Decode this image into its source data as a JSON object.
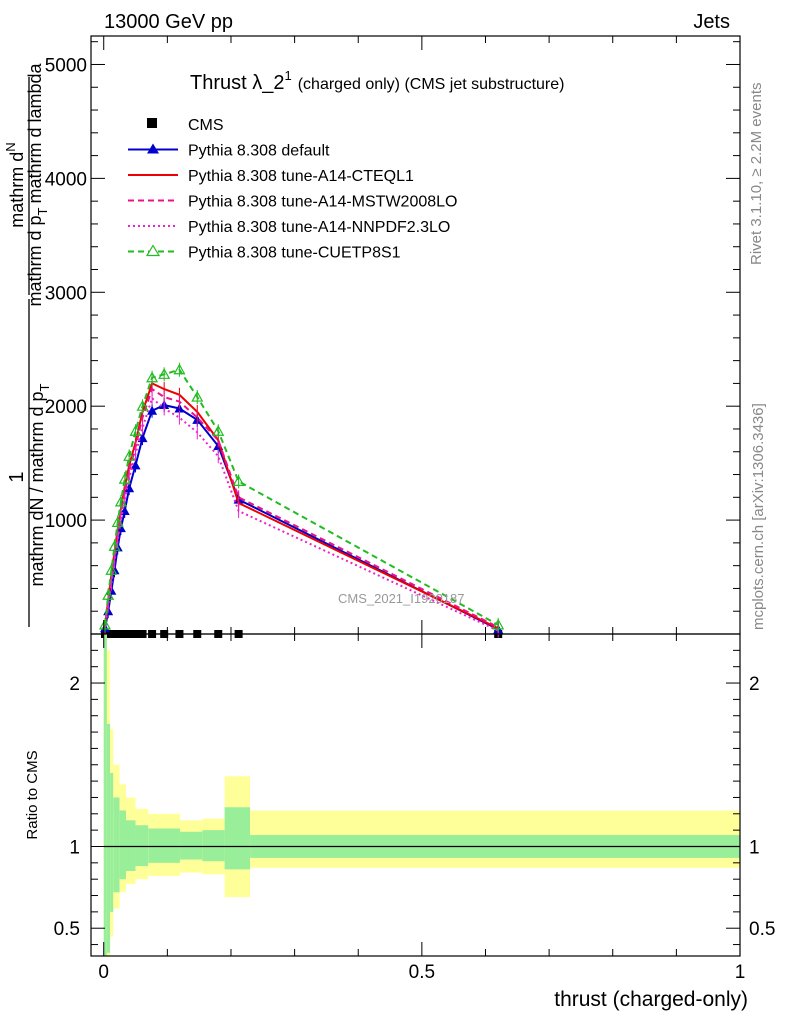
{
  "header": {
    "energy": "13000 GeV pp",
    "process": "Jets"
  },
  "side": {
    "rivet": "Rivet 3.1.10, ≥ 2.2M events",
    "mcplots": "mcplots.cern.ch [arXiv:1306.3436]"
  },
  "watermark": "CMS_2021_I1920187",
  "chart_data": [
    {
      "type": "line",
      "title": "Thrust λ_2",
      "title_sup": "1",
      "title_rest": "(charged only) (CMS jet substructure)",
      "ylabel_num": "1",
      "ylabel_num2": "mathrm d",
      "ylabel_num3": "N",
      "ylabel_den1": "mathrm d p",
      "ylabel_den1_sub": "T",
      "ylabel_den2": "mathrm d lambda",
      "ylabel_main": "mathrm dN / mathrm d p",
      "ylabel_main_sub": "T",
      "ylim": [
        0,
        5250
      ],
      "yticks": [
        {
          "v": 1000,
          "label": "1000"
        },
        {
          "v": 2000,
          "label": "2000"
        },
        {
          "v": 3000,
          "label": "3000"
        },
        {
          "v": 4000,
          "label": "4000"
        },
        {
          "v": 5000,
          "label": "5000"
        }
      ],
      "xlim": [
        -0.02,
        1.0
      ],
      "legend_position": "top-left",
      "series": [
        {
          "name": "CMS",
          "color": "#000000",
          "style": "marker",
          "marker": "square",
          "x": [
            0.002,
            0.007,
            0.012,
            0.017,
            0.022,
            0.027,
            0.033,
            0.04,
            0.05,
            0.061,
            0.076,
            0.095,
            0.119,
            0.147,
            0.18,
            0.212,
            0.62
          ],
          "y": [
            0,
            0,
            0,
            0,
            0,
            0,
            0,
            0,
            0,
            0,
            0,
            0,
            0,
            0,
            0,
            0,
            0
          ]
        },
        {
          "name": "Pythia 8.308 default",
          "color": "#0000cc",
          "style": "solid",
          "marker": "triangle",
          "x": [
            0.002,
            0.007,
            0.012,
            0.017,
            0.022,
            0.027,
            0.033,
            0.04,
            0.05,
            0.061,
            0.076,
            0.095,
            0.119,
            0.147,
            0.18,
            0.212,
            0.62
          ],
          "y": [
            50,
            200,
            380,
            560,
            760,
            930,
            1080,
            1280,
            1480,
            1720,
            1960,
            2010,
            1980,
            1880,
            1650,
            1180,
            40
          ]
        },
        {
          "name": "Pythia 8.308 tune-A14-CTEQL1",
          "color": "#ee0000",
          "style": "solid",
          "marker": "none",
          "x": [
            0.002,
            0.007,
            0.012,
            0.017,
            0.022,
            0.027,
            0.033,
            0.04,
            0.05,
            0.061,
            0.076,
            0.095,
            0.119,
            0.147,
            0.18,
            0.212,
            0.62
          ],
          "y": [
            70,
            300,
            520,
            720,
            920,
            1100,
            1290,
            1480,
            1680,
            1950,
            2200,
            2150,
            2100,
            1950,
            1700,
            1150,
            50
          ]
        },
        {
          "name": "Pythia 8.308 tune-A14-MSTW2008LO",
          "color": "#ee1188",
          "style": "dashed",
          "marker": "none",
          "x": [
            0.002,
            0.007,
            0.012,
            0.017,
            0.022,
            0.027,
            0.033,
            0.04,
            0.05,
            0.061,
            0.076,
            0.095,
            0.119,
            0.147,
            0.18,
            0.212,
            0.62
          ],
          "y": [
            60,
            280,
            490,
            690,
            880,
            1060,
            1240,
            1430,
            1640,
            1900,
            2150,
            2080,
            2040,
            1900,
            1700,
            1200,
            60
          ]
        },
        {
          "name": "Pythia 8.308 tune-A14-NNPDF2.3LO",
          "color": "#ee22cc",
          "style": "dotted",
          "marker": "none",
          "x": [
            0.002,
            0.007,
            0.012,
            0.017,
            0.022,
            0.027,
            0.033,
            0.04,
            0.05,
            0.061,
            0.076,
            0.095,
            0.119,
            0.147,
            0.18,
            0.212,
            0.62
          ],
          "y": [
            55,
            250,
            440,
            640,
            830,
            1000,
            1180,
            1370,
            1580,
            1810,
            2070,
            1980,
            1900,
            1770,
            1560,
            1080,
            30
          ]
        },
        {
          "name": "Pythia 8.308 tune-CUETP8S1",
          "color": "#22bb22",
          "style": "dashed",
          "marker": "open-triangle",
          "x": [
            0.002,
            0.007,
            0.012,
            0.017,
            0.022,
            0.027,
            0.033,
            0.04,
            0.05,
            0.061,
            0.076,
            0.095,
            0.119,
            0.147,
            0.18,
            0.212,
            0.62
          ],
          "y": [
            80,
            340,
            560,
            770,
            980,
            1160,
            1360,
            1560,
            1780,
            2000,
            2250,
            2280,
            2320,
            2080,
            1780,
            1340,
            80
          ]
        }
      ]
    },
    {
      "type": "area",
      "ylabel": "Ratio to CMS",
      "xlabel": "thrust (charged-only)",
      "xlim": [
        -0.02,
        1.0
      ],
      "ylim": [
        0.33,
        2.3
      ],
      "xticks": [
        {
          "v": 0,
          "label": "0"
        },
        {
          "v": 0.5,
          "label": "0.5"
        },
        {
          "v": 1,
          "label": "1"
        }
      ],
      "yticks": [
        {
          "v": 0.5,
          "label": "0.5"
        },
        {
          "v": 1,
          "label": "1"
        },
        {
          "v": 2,
          "label": "2"
        }
      ],
      "band_colors": {
        "inner": "#99ee99",
        "outer": "#ffff99"
      },
      "bins": [
        {
          "x0": 0.0,
          "x1": 0.005,
          "inner": [
            0.3,
            2.3
          ],
          "outer": [
            0.3,
            2.3
          ]
        },
        {
          "x0": 0.005,
          "x1": 0.01,
          "inner": [
            0.35,
            1.75
          ],
          "outer": [
            0.3,
            2.2
          ]
        },
        {
          "x0": 0.01,
          "x1": 0.015,
          "inner": [
            0.6,
            1.45
          ],
          "outer": [
            0.45,
            1.72
          ]
        },
        {
          "x0": 0.015,
          "x1": 0.025,
          "inner": [
            0.72,
            1.3
          ],
          "outer": [
            0.62,
            1.5
          ]
        },
        {
          "x0": 0.025,
          "x1": 0.035,
          "inner": [
            0.8,
            1.22
          ],
          "outer": [
            0.72,
            1.38
          ]
        },
        {
          "x0": 0.035,
          "x1": 0.05,
          "inner": [
            0.85,
            1.16
          ],
          "outer": [
            0.77,
            1.3
          ]
        },
        {
          "x0": 0.05,
          "x1": 0.07,
          "inner": [
            0.88,
            1.13
          ],
          "outer": [
            0.8,
            1.23
          ]
        },
        {
          "x0": 0.07,
          "x1": 0.12,
          "inner": [
            0.9,
            1.11
          ],
          "outer": [
            0.82,
            1.2
          ]
        },
        {
          "x0": 0.12,
          "x1": 0.155,
          "inner": [
            0.92,
            1.09
          ],
          "outer": [
            0.84,
            1.16
          ]
        },
        {
          "x0": 0.155,
          "x1": 0.19,
          "inner": [
            0.91,
            1.1
          ],
          "outer": [
            0.83,
            1.17
          ]
        },
        {
          "x0": 0.19,
          "x1": 0.23,
          "inner": [
            0.86,
            1.24
          ],
          "outer": [
            0.69,
            1.43
          ]
        },
        {
          "x0": 0.23,
          "x1": 1.0,
          "inner": [
            0.93,
            1.07
          ],
          "outer": [
            0.87,
            1.22
          ]
        }
      ],
      "reference": 1.0
    }
  ]
}
